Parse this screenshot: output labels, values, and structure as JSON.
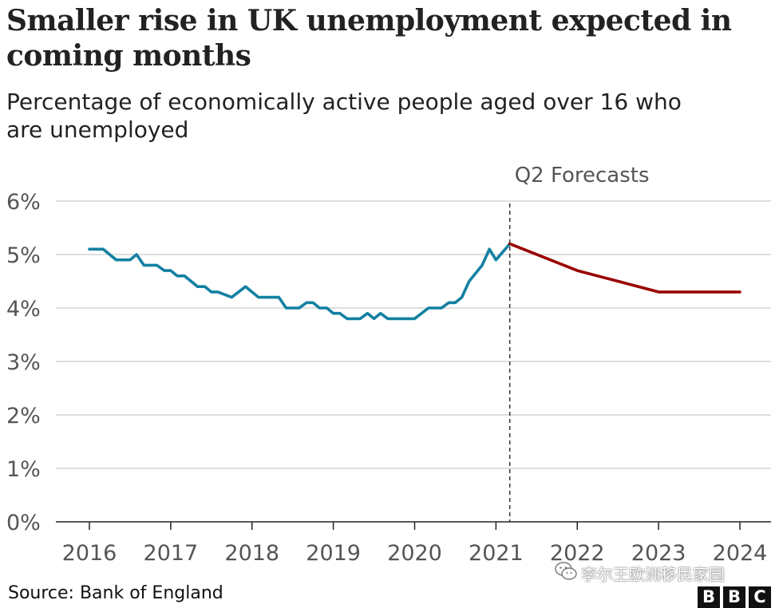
{
  "header": {
    "title": "Smaller rise in UK unemployment expected in coming months",
    "subtitle": "Percentage of economically active people aged over 16 who are unemployed"
  },
  "footer": {
    "source": "Source: Bank of England",
    "watermark": "李尔王欧洲移民家园",
    "watermark_icon": "wechat-icon",
    "logo_letters": [
      "B",
      "B",
      "C"
    ]
  },
  "chart_data": {
    "type": "line",
    "title": "Smaller rise in UK unemployment expected in coming months",
    "subtitle": "Percentage of economically active people aged over 16 who are unemployed",
    "xlabel": "",
    "ylabel": "",
    "xlim": [
      2015.75,
      2024.25
    ],
    "ylim": [
      0,
      6
    ],
    "x_ticks": [
      "2016",
      "2017",
      "2018",
      "2019",
      "2020",
      "2021",
      "2022",
      "2023",
      "2024"
    ],
    "y_ticks": [
      "0%",
      "1%",
      "2%",
      "3%",
      "4%",
      "5%",
      "6%"
    ],
    "grid": true,
    "annotation": {
      "text": "Q2 Forecasts",
      "x": 2021.17
    },
    "colors": {
      "actual": "#1380a1",
      "forecast": "#990000",
      "grid": "#cccccc",
      "axis": "#222222",
      "annotation_line": "#333333"
    },
    "series": [
      {
        "key": "actual",
        "x": [
          2016.0,
          2016.17,
          2016.33,
          2016.5,
          2016.58,
          2016.67,
          2016.83,
          2016.92,
          2017.0,
          2017.08,
          2017.17,
          2017.33,
          2017.42,
          2017.5,
          2017.58,
          2017.75,
          2017.92,
          2018.08,
          2018.17,
          2018.33,
          2018.42,
          2018.58,
          2018.67,
          2018.75,
          2018.83,
          2018.92,
          2019.0,
          2019.08,
          2019.17,
          2019.33,
          2019.42,
          2019.5,
          2019.58,
          2019.67,
          2020.0,
          2020.17,
          2020.25,
          2020.33,
          2020.42,
          2020.5,
          2020.58,
          2020.67,
          2020.83,
          2020.92,
          2021.0,
          2021.17
        ],
        "y": [
          5.1,
          5.1,
          4.9,
          4.9,
          5.0,
          4.8,
          4.8,
          4.7,
          4.7,
          4.6,
          4.6,
          4.4,
          4.4,
          4.3,
          4.3,
          4.2,
          4.4,
          4.2,
          4.2,
          4.2,
          4.0,
          4.0,
          4.1,
          4.1,
          4.0,
          4.0,
          3.9,
          3.9,
          3.8,
          3.8,
          3.9,
          3.8,
          3.9,
          3.8,
          3.8,
          4.0,
          4.0,
          4.0,
          4.1,
          4.1,
          4.2,
          4.5,
          4.8,
          5.1,
          4.9,
          5.2
        ]
      },
      {
        "key": "forecast",
        "x": [
          2021.17,
          2022.0,
          2023.0,
          2024.0
        ],
        "y": [
          5.2,
          4.7,
          4.3,
          4.3
        ]
      }
    ]
  }
}
